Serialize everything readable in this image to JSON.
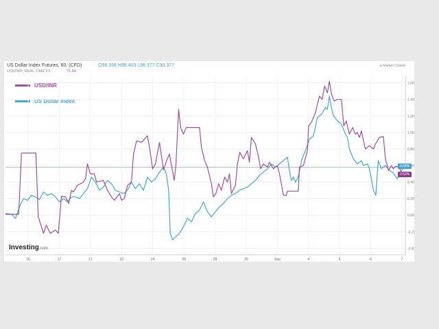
{
  "header": {
    "title": "US Dollar Index Futures, 60, (CFD)",
    "ohlc": [
      "O98.398",
      "H98.403",
      "L98.377",
      "C98.377"
    ],
    "subtitle": "USD/INR, REAL-TIME FX",
    "subtitle_value": "71.64",
    "market_status": "Market Closed"
  },
  "branding": {
    "name": "Investing",
    "suffix": ".com"
  },
  "chart_data": {
    "type": "line",
    "x_ticks": [
      "16",
      "17",
      "21",
      "22",
      "24",
      "28",
      "29",
      "30",
      "Sep",
      "4",
      "5",
      "6",
      "7"
    ],
    "y_ticks": [
      "1.60%",
      "1.40%",
      "1.20%",
      "1.00%",
      "0.80%",
      "0.60%",
      "0.40%",
      "0.20%",
      "0.00%",
      "-0.20%",
      "-0.40%"
    ],
    "ylim": [
      -0.48,
      1.68
    ],
    "xlim": [
      0,
      100
    ],
    "grid": true,
    "legend_position": "top-left",
    "series": [
      {
        "name": "USD/INR",
        "color": "#9b4f9b",
        "last_label": "0.52%",
        "last_value": 0.52,
        "points": [
          [
            0,
            0.01
          ],
          [
            3.3,
            0.01
          ],
          [
            4,
            0.75
          ],
          [
            7.6,
            0.75
          ],
          [
            8.2,
            -0.02
          ],
          [
            9.5,
            -0.22
          ],
          [
            10.2,
            -0.12
          ],
          [
            11.2,
            -0.22
          ],
          [
            12.5,
            -0.18
          ],
          [
            13.2,
            -0.22
          ],
          [
            14,
            0.23
          ],
          [
            15,
            0.22
          ],
          [
            15.8,
            0.14
          ],
          [
            16.5,
            0.3
          ],
          [
            17,
            0.28
          ],
          [
            18,
            0.36
          ],
          [
            19.5,
            0.4
          ],
          [
            20,
            0.44
          ],
          [
            20.5,
            0.62
          ],
          [
            21.2,
            0.5
          ],
          [
            22.2,
            0.5
          ],
          [
            22.8,
            0.4
          ],
          [
            24.5,
            0.42
          ],
          [
            25.5,
            0.3
          ],
          [
            26.5,
            0.22
          ],
          [
            27.2,
            0.18
          ],
          [
            28.5,
            0.26
          ],
          [
            29,
            0.18
          ],
          [
            29.7,
            0.2
          ],
          [
            30.5,
            0.36
          ],
          [
            31.5,
            0.4
          ],
          [
            32,
            0.74
          ],
          [
            32.8,
            0.9
          ],
          [
            34,
            0.88
          ],
          [
            35.5,
            0.96
          ],
          [
            36,
            0.82
          ],
          [
            36.8,
            0.56
          ],
          [
            37.5,
            0.62
          ],
          [
            38.5,
            0.88
          ],
          [
            39.5,
            0.55
          ],
          [
            40.3,
            0.66
          ],
          [
            41,
            0.74
          ],
          [
            42.2,
            0.42
          ],
          [
            42.6,
            0.6
          ],
          [
            43.3,
            1.28
          ],
          [
            43.8,
            1.06
          ],
          [
            44.5,
            0.98
          ],
          [
            45.2,
            1.06
          ],
          [
            48.5,
            1.06
          ],
          [
            49,
            0.82
          ],
          [
            49.8,
            0.66
          ],
          [
            50.5,
            0.58
          ],
          [
            51.5,
            0.38
          ],
          [
            52,
            0.22
          ],
          [
            52.6,
            0.26
          ],
          [
            53.3,
            0.38
          ],
          [
            54,
            0.3
          ],
          [
            54.8,
            0.46
          ],
          [
            55.5,
            0.4
          ],
          [
            56,
            0.5
          ],
          [
            56.5,
            0.26
          ],
          [
            57.5,
            0.36
          ],
          [
            58,
            0.62
          ],
          [
            58.6,
            0.76
          ],
          [
            59.5,
            0.68
          ],
          [
            60.5,
            0.78
          ],
          [
            61,
            0.64
          ],
          [
            61.5,
            0.94
          ],
          [
            62.5,
            0.86
          ],
          [
            63.2,
            0.72
          ],
          [
            63.8,
            0.56
          ],
          [
            64.5,
            0.62
          ],
          [
            65.5,
            0.58
          ],
          [
            66,
            0.64
          ],
          [
            67,
            0.56
          ],
          [
            68,
            0.6
          ],
          [
            68.5,
            0.5
          ],
          [
            69.5,
            0.24
          ],
          [
            70.2,
            0.24
          ],
          [
            70.5,
            0.29
          ],
          [
            71.5,
            0.29
          ],
          [
            73.2,
            0.29
          ],
          [
            73.5,
            0.58
          ],
          [
            74.5,
            0.6
          ],
          [
            75.5,
            0.78
          ],
          [
            75.8,
            1.08
          ],
          [
            76.5,
            1.12
          ],
          [
            77.5,
            1.24
          ],
          [
            78.5,
            1.44
          ],
          [
            79.2,
            1.4
          ],
          [
            79.8,
            1.56
          ],
          [
            80.5,
            1.48
          ],
          [
            81,
            1.62
          ],
          [
            81.5,
            1.47
          ],
          [
            82.2,
            1.38
          ],
          [
            83,
            1.4
          ],
          [
            84,
            1.4
          ],
          [
            84.6,
            1.08
          ],
          [
            85.2,
            1.14
          ],
          [
            86,
            0.98
          ],
          [
            86.8,
            1.06
          ],
          [
            87.5,
            0.98
          ],
          [
            88,
            1
          ],
          [
            88.5,
            0.94
          ],
          [
            89,
            1.02
          ],
          [
            89.5,
            0.9
          ],
          [
            90,
            0.8
          ],
          [
            91,
            0.84
          ],
          [
            92,
            0.8
          ],
          [
            92.5,
            0.86
          ],
          [
            93.5,
            0.94
          ],
          [
            94.5,
            0.95
          ],
          [
            95,
            0.68
          ],
          [
            95.8,
            0.54
          ],
          [
            96.5,
            0.6
          ],
          [
            97,
            0.56
          ],
          [
            97.5,
            0.59
          ],
          [
            98.5,
            0.58
          ],
          [
            99,
            0.5
          ],
          [
            100,
            0.52
          ]
        ]
      },
      {
        "name": "US Dollar Index",
        "color": "#4aa3c8",
        "last_label": "0.58%",
        "last_value": 0.58,
        "points": [
          [
            0,
            0.02
          ],
          [
            1.5,
            0.01
          ],
          [
            2.5,
            -0.04
          ],
          [
            3.5,
            0.1
          ],
          [
            4.5,
            0.2
          ],
          [
            5.5,
            0.18
          ],
          [
            6.5,
            0.24
          ],
          [
            7.5,
            0.22
          ],
          [
            8.5,
            0.19
          ],
          [
            9.5,
            0.28
          ],
          [
            10.5,
            0.24
          ],
          [
            11.5,
            0.26
          ],
          [
            12.5,
            0.22
          ],
          [
            13.5,
            0.16
          ],
          [
            14.5,
            0.2
          ],
          [
            15.5,
            0.16
          ],
          [
            16.5,
            0.22
          ],
          [
            17.5,
            0.22
          ],
          [
            18.5,
            0.2
          ],
          [
            19.5,
            0.26
          ],
          [
            20.5,
            0.32
          ],
          [
            21.5,
            0.46
          ],
          [
            22.5,
            0.4
          ],
          [
            23.5,
            0.3
          ],
          [
            24.5,
            0.34
          ],
          [
            25.5,
            0.42
          ],
          [
            26.5,
            0.38
          ],
          [
            27.5,
            0.3
          ],
          [
            28.5,
            0.28
          ],
          [
            29.5,
            0.26
          ],
          [
            30.5,
            0.3
          ],
          [
            31.5,
            0.4
          ],
          [
            32.5,
            0.32
          ],
          [
            33.5,
            0.38
          ],
          [
            34.5,
            0.3
          ],
          [
            35.5,
            0.46
          ],
          [
            36.5,
            0.4
          ],
          [
            37.5,
            0.44
          ],
          [
            38.5,
            0.52
          ],
          [
            39.5,
            0.58
          ],
          [
            40.2,
            0.5
          ],
          [
            40.8,
            0.3
          ],
          [
            41.2,
            -0.22
          ],
          [
            41.8,
            -0.3
          ],
          [
            42.6,
            -0.26
          ],
          [
            43.5,
            -0.22
          ],
          [
            44.5,
            -0.14
          ],
          [
            45.5,
            -0.04
          ],
          [
            46.5,
            -0.08
          ],
          [
            47.5,
            0.02
          ],
          [
            48.5,
            0.06
          ],
          [
            49.5,
            0.16
          ],
          [
            50.5,
            0.04
          ],
          [
            51.5,
            -0.02
          ],
          [
            52.5,
            0.04
          ],
          [
            53.5,
            0.1
          ],
          [
            54.5,
            0.14
          ],
          [
            55.5,
            0.2
          ],
          [
            56.5,
            0.24
          ],
          [
            57.5,
            0.26
          ],
          [
            58.5,
            0.3
          ],
          [
            59.5,
            0.32
          ],
          [
            60.5,
            0.34
          ],
          [
            61.5,
            0.38
          ],
          [
            62.5,
            0.42
          ],
          [
            63.5,
            0.48
          ],
          [
            64.5,
            0.52
          ],
          [
            65.5,
            0.56
          ],
          [
            66.5,
            0.62
          ],
          [
            67.5,
            0.58
          ],
          [
            68.5,
            0.62
          ],
          [
            69.5,
            0.66
          ],
          [
            70.5,
            0.7
          ],
          [
            71,
            0.54
          ],
          [
            71.5,
            0.42
          ],
          [
            72,
            0.46
          ],
          [
            72.5,
            0.4
          ],
          [
            73,
            0.44
          ],
          [
            73.5,
            0.52
          ],
          [
            74,
            0.66
          ],
          [
            75,
            0.78
          ],
          [
            76,
            0.92
          ],
          [
            77,
            0.96
          ],
          [
            78,
            1.18
          ],
          [
            79,
            1.22
          ],
          [
            80,
            1.3
          ],
          [
            80.5,
            1.28
          ],
          [
            81,
            1.44
          ],
          [
            81.5,
            1.3
          ],
          [
            82,
            1.2
          ],
          [
            83,
            1.14
          ],
          [
            84,
            1.1
          ],
          [
            85,
            0.98
          ],
          [
            85.5,
            0.94
          ],
          [
            86,
            0.8
          ],
          [
            87,
            0.68
          ],
          [
            88,
            0.62
          ],
          [
            89,
            0.66
          ],
          [
            89.5,
            0.6
          ],
          [
            90.5,
            0.62
          ],
          [
            91,
            0.56
          ],
          [
            91.5,
            0.44
          ],
          [
            92,
            0.3
          ],
          [
            92.6,
            0.24
          ],
          [
            93.2,
            0.66
          ],
          [
            94,
            0.56
          ],
          [
            95,
            0.6
          ],
          [
            96,
            0.54
          ],
          [
            96.8,
            0.52
          ],
          [
            97.4,
            0.48
          ],
          [
            98,
            0.44
          ],
          [
            98.6,
            0.5
          ],
          [
            99.3,
            0.56
          ],
          [
            100,
            0.58
          ]
        ]
      }
    ]
  }
}
